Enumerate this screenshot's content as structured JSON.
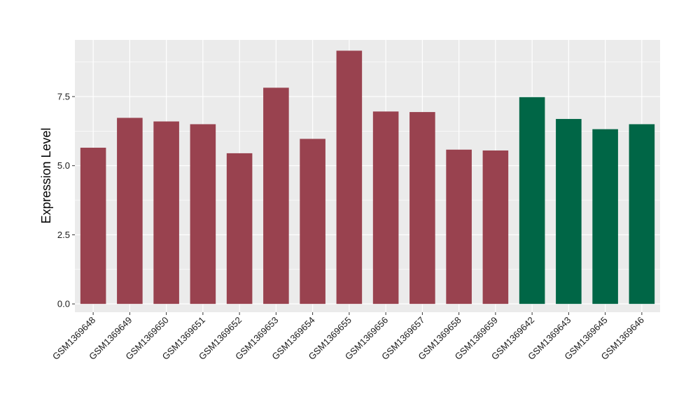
{
  "chart_data": {
    "type": "bar",
    "title": "",
    "xlabel": "",
    "ylabel": "Expression Level",
    "ylim": [
      -0.3,
      9.55
    ],
    "yticks": [
      0.0,
      2.5,
      5.0,
      7.5
    ],
    "ytick_labels": [
      "0.0",
      "2.5",
      "5.0",
      "7.5"
    ],
    "grid": true,
    "legend": "none",
    "panel_background": "#ebebeb",
    "grid_color": "#ffffff",
    "categories": [
      "GSM1369648",
      "GSM1369649",
      "GSM1369650",
      "GSM1369651",
      "GSM1369652",
      "GSM1369653",
      "GSM1369654",
      "GSM1369655",
      "GSM1369656",
      "GSM1369657",
      "GSM1369658",
      "GSM1369659",
      "GSM1369642",
      "GSM1369643",
      "GSM1369645",
      "GSM1369646"
    ],
    "values": [
      5.65,
      6.73,
      6.6,
      6.5,
      5.45,
      7.82,
      5.97,
      9.16,
      6.96,
      6.94,
      5.58,
      5.55,
      7.48,
      6.69,
      6.32,
      6.5
    ],
    "colors": [
      "#99424f",
      "#99424f",
      "#99424f",
      "#99424f",
      "#99424f",
      "#99424f",
      "#99424f",
      "#99424f",
      "#99424f",
      "#99424f",
      "#99424f",
      "#99424f",
      "#006646",
      "#006646",
      "#006646",
      "#006646"
    ]
  }
}
